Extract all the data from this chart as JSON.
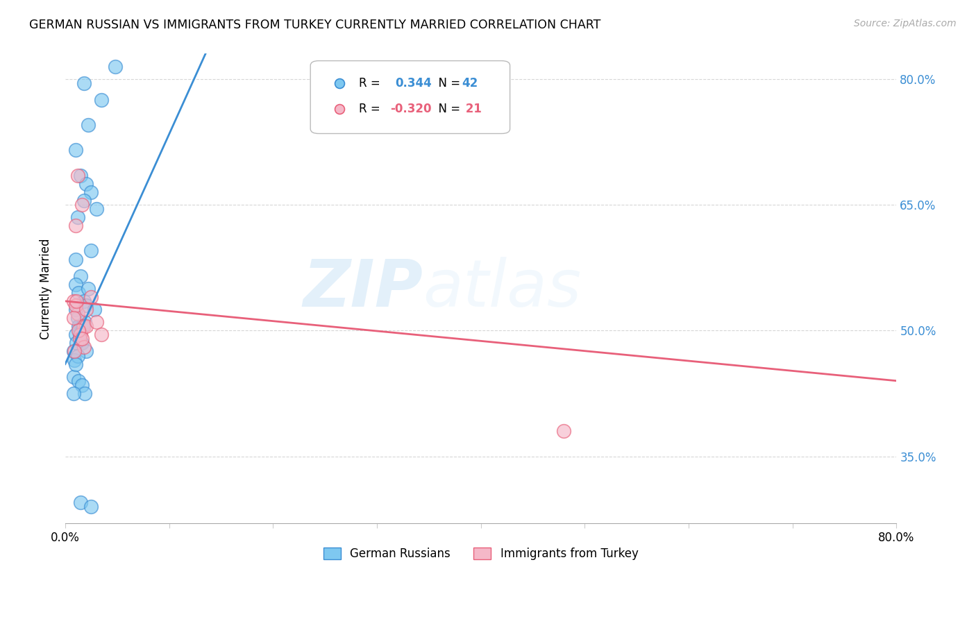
{
  "title": "GERMAN RUSSIAN VS IMMIGRANTS FROM TURKEY CURRENTLY MARRIED CORRELATION CHART",
  "source": "Source: ZipAtlas.com",
  "ylabel": "Currently Married",
  "xlim": [
    0.0,
    80.0
  ],
  "ylim": [
    27.0,
    83.0
  ],
  "y_ticks": [
    35.0,
    50.0,
    65.0,
    80.0
  ],
  "y_tick_labels": [
    "35.0%",
    "50.0%",
    "65.0%",
    "80.0%"
  ],
  "x_ticks": [
    0.0,
    10.0,
    20.0,
    30.0,
    40.0,
    50.0,
    60.0,
    70.0,
    80.0
  ],
  "x_tick_labels": [
    "0.0%",
    "",
    "",
    "",
    "",
    "",
    "",
    "",
    "80.0%"
  ],
  "color_blue": "#7ec8f0",
  "color_pink": "#f5b8c8",
  "color_blue_line": "#3b8ed4",
  "color_pink_line": "#e8607a",
  "watermark_zip": "ZIP",
  "watermark_atlas": "atlas",
  "blue_dots_x": [
    1.8,
    2.2,
    3.5,
    4.8,
    1.0,
    1.5,
    2.0,
    2.5,
    3.0,
    1.2,
    1.8,
    2.5,
    1.0,
    1.5,
    1.0,
    1.3,
    1.8,
    2.2,
    1.0,
    1.2,
    1.5,
    2.0,
    1.0,
    1.3,
    1.6,
    1.9,
    0.8,
    1.1,
    1.4,
    1.7,
    2.0,
    0.9,
    1.2,
    2.8,
    0.8,
    1.0,
    1.3,
    1.6,
    1.9,
    1.5,
    2.5,
    0.8
  ],
  "blue_dots_y": [
    79.5,
    74.5,
    77.5,
    81.5,
    71.5,
    68.5,
    67.5,
    66.5,
    64.5,
    63.5,
    65.5,
    59.5,
    58.5,
    56.5,
    55.5,
    54.5,
    53.5,
    55.0,
    52.5,
    51.5,
    50.5,
    53.0,
    49.5,
    50.5,
    48.5,
    51.0,
    47.5,
    48.5,
    49.5,
    50.5,
    47.5,
    46.5,
    47.0,
    52.5,
    44.5,
    46.0,
    44.0,
    43.5,
    42.5,
    29.5,
    29.0,
    42.5
  ],
  "pink_dots_x": [
    0.8,
    1.2,
    1.8,
    2.5,
    1.0,
    1.5,
    2.0,
    3.0,
    3.5,
    1.2,
    1.6,
    1.0,
    1.4,
    1.8,
    0.9,
    1.3,
    1.6,
    0.8,
    2.0,
    48.0,
    1.1
  ],
  "pink_dots_y": [
    53.5,
    52.0,
    50.5,
    54.0,
    53.0,
    49.5,
    50.5,
    51.0,
    49.5,
    68.5,
    65.0,
    62.5,
    49.0,
    48.0,
    47.5,
    50.0,
    49.0,
    51.5,
    52.5,
    38.0,
    53.5
  ],
  "blue_line_x": [
    0.0,
    13.5
  ],
  "blue_line_y": [
    46.0,
    83.0
  ],
  "pink_line_x": [
    0.0,
    80.0
  ],
  "pink_line_y": [
    53.5,
    44.0
  ]
}
